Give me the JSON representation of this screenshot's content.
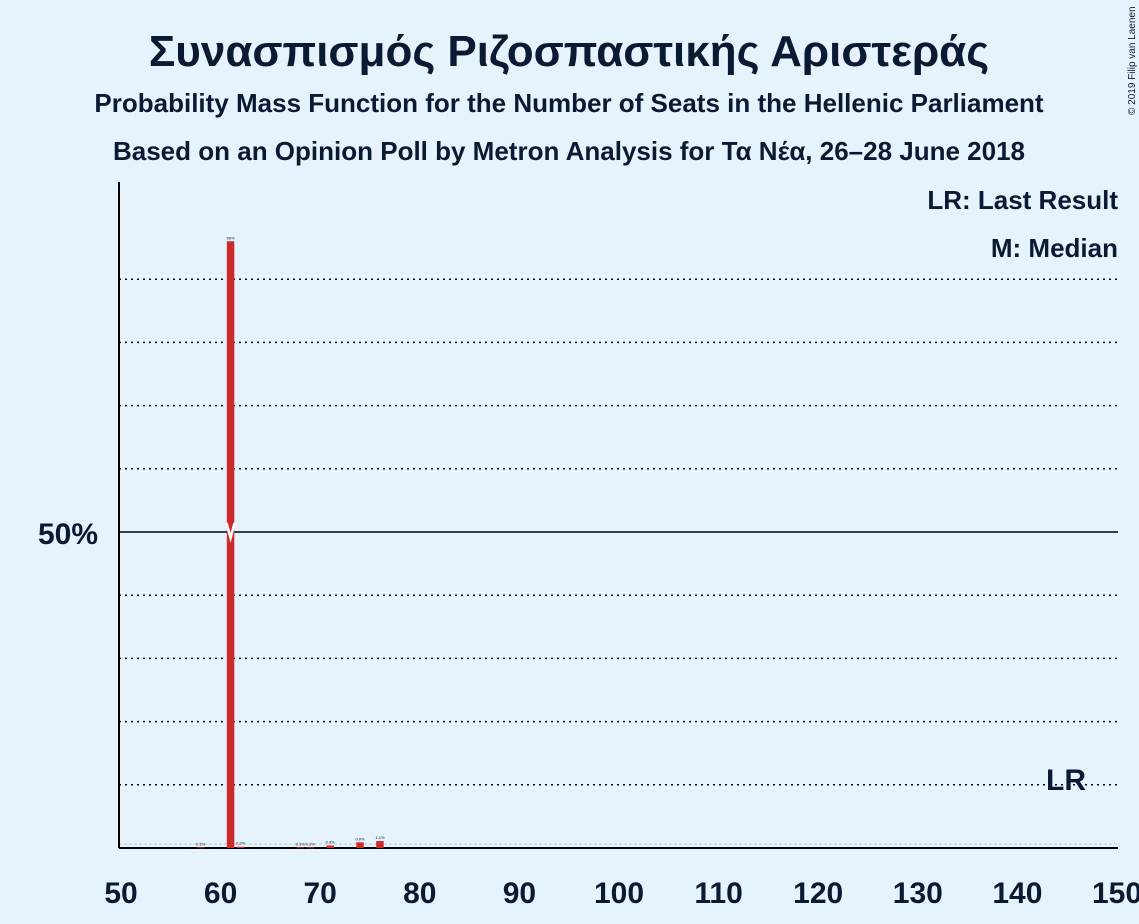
{
  "title": "Συνασπισμός Ριζοσπαστικής Αριστεράς",
  "subtitle1": "Probability Mass Function for the Number of Seats in the Hellenic Parliament",
  "subtitle2": "Based on an Opinion Poll by Metron Analysis for Τα Νέα, 26–28 June 2018",
  "copyright": "© 2019 Filip van Laenen",
  "legend": {
    "last_result": "LR: Last Result",
    "median": "M: Median"
  },
  "lr_marker": "LR",
  "colors": {
    "background": "#e6f2fc",
    "bar": "#cc2b2b",
    "text": "#0a1a33"
  },
  "chart_data": {
    "type": "bar",
    "x_range": [
      50,
      150
    ],
    "x_ticks": [
      50,
      60,
      70,
      80,
      90,
      100,
      110,
      120,
      130,
      140,
      150
    ],
    "ylim": [
      0,
      100
    ],
    "y_major_label": "50%",
    "y_gridlines_percent": [
      10,
      20,
      30,
      40,
      60,
      70,
      80,
      90
    ],
    "last_result_seat": 145,
    "median_seat": 61,
    "bars": [
      {
        "seat": 58,
        "value": 0.1,
        "label": "0.1%"
      },
      {
        "seat": 61,
        "value": 96,
        "label": "96%"
      },
      {
        "seat": 62,
        "value": 0.2,
        "label": "0.2%"
      },
      {
        "seat": 68,
        "value": 0.1,
        "label": "0.1%"
      },
      {
        "seat": 69,
        "value": 0.1,
        "label": "0.1%"
      },
      {
        "seat": 71,
        "value": 0.4,
        "label": "0.4%"
      },
      {
        "seat": 74,
        "value": 0.9,
        "label": "0.9%"
      },
      {
        "seat": 76,
        "value": 1.1,
        "label": "1.1%"
      }
    ]
  }
}
